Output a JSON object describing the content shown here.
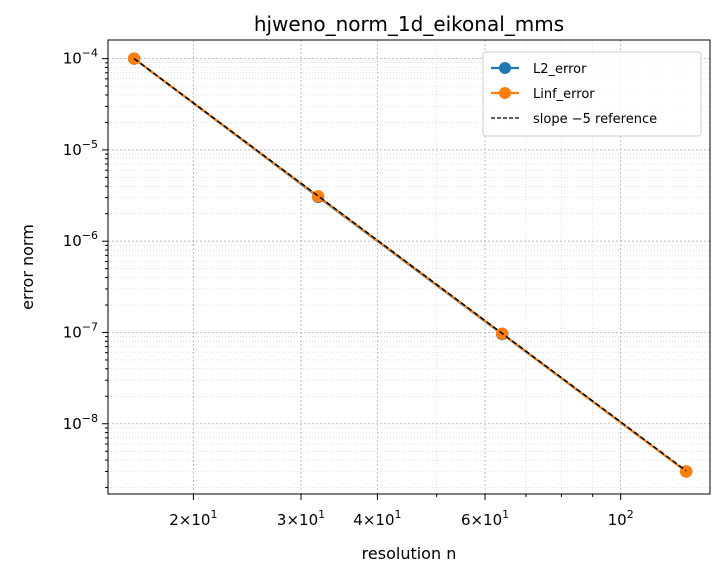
{
  "chart_data": {
    "type": "line",
    "title": "hjweno_norm_1d_eikonal_mms",
    "xlabel": "resolution n",
    "ylabel": "error norm",
    "xscale": "log",
    "yscale": "log",
    "xlim": [
      14.5,
      140
    ],
    "ylim": [
      1.7e-09,
      0.00016
    ],
    "grid": true,
    "legend_position": "top-right",
    "x": [
      16,
      32,
      64,
      128
    ],
    "series": [
      {
        "name": "L2_error",
        "color": "#1f77b4",
        "marker": "circle",
        "linestyle": "solid",
        "values": [
          0.0001,
          3.05e-06,
          9.6e-08,
          3e-09
        ]
      },
      {
        "name": "Linf_error",
        "color": "#ff7f0e",
        "marker": "circle",
        "linestyle": "solid",
        "values": [
          0.0001,
          3.1e-06,
          9.7e-08,
          3e-09
        ]
      },
      {
        "name": "slope −5 reference",
        "color": "#000000",
        "marker": "none",
        "linestyle": "dashed",
        "values": [
          0.0001,
          3.125e-06,
          9.766e-08,
          3.052e-09
        ]
      }
    ],
    "x_ticks": [
      {
        "value": 20,
        "mantissa": "2",
        "exponent": "1"
      },
      {
        "value": 30,
        "mantissa": "3",
        "exponent": "1"
      },
      {
        "value": 40,
        "mantissa": "4",
        "exponent": "1"
      },
      {
        "value": 60,
        "mantissa": "6",
        "exponent": "1"
      },
      {
        "value": 100,
        "mantissa": "",
        "exponent": "2"
      }
    ],
    "y_ticks": [
      {
        "value": 1e-08,
        "exponent": "−8"
      },
      {
        "value": 1e-07,
        "exponent": "−7"
      },
      {
        "value": 1e-06,
        "exponent": "−6"
      },
      {
        "value": 1e-05,
        "exponent": "−5"
      },
      {
        "value": 0.0001,
        "exponent": "−4"
      }
    ]
  }
}
